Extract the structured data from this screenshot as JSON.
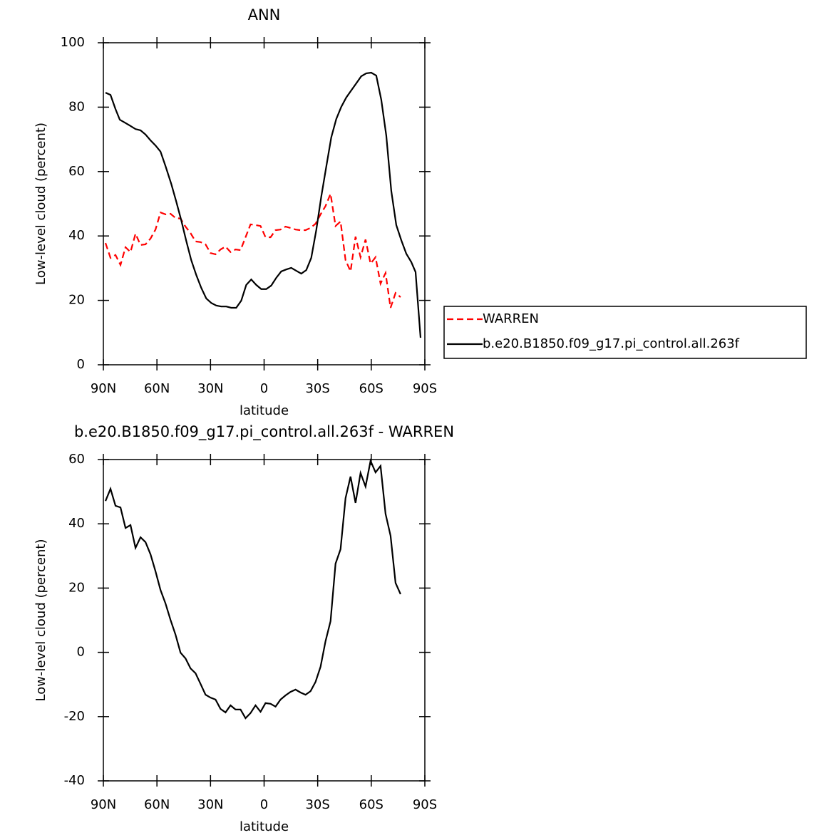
{
  "chart_data": [
    {
      "type": "line",
      "title": "ANN",
      "xlabel": "latitude",
      "ylabel": "Low-level cloud (percent)",
      "xlim": [
        90,
        -90
      ],
      "ylim": [
        0,
        100
      ],
      "xticks": [
        {
          "value": 90,
          "label": "90N"
        },
        {
          "value": 60,
          "label": "60N"
        },
        {
          "value": 30,
          "label": "30N"
        },
        0,
        {
          "value": -30,
          "label": "30S"
        },
        {
          "value": -60,
          "label": "60S"
        },
        {
          "value": -90,
          "label": "90S"
        }
      ],
      "yticks": [
        0,
        20,
        40,
        60,
        80,
        100
      ],
      "legend": "right",
      "series": [
        {
          "name": "WARREN",
          "color": "#ff0000",
          "line_style": "dashed",
          "x": [
            88.8,
            86,
            83.2,
            80.4,
            77.6,
            74.8,
            72,
            69.2,
            66.4,
            63.6,
            60.8,
            58,
            55.2,
            52.4,
            49.6,
            46.8,
            44,
            41.2,
            38.4,
            35.6,
            32.8,
            30,
            27.2,
            24.4,
            21.6,
            18.8,
            16,
            13.2,
            10.4,
            7.6,
            4.8,
            2,
            -0.8,
            -3.6,
            -6.4,
            -9.2,
            -12,
            -14.8,
            -17.6,
            -20.4,
            -23.2,
            -26,
            -28.8,
            -31.6,
            -34.4,
            -37.2,
            -40,
            -42.8,
            -45.6,
            -48.4,
            -51.2,
            -54,
            -56.8,
            -59.6,
            -62.4,
            -65.2,
            -68,
            -70.8,
            -73.6,
            -76.4
          ],
          "values": [
            37.8,
            33.2,
            34.1,
            31.0,
            36.5,
            35.0,
            40.7,
            37.2,
            37.4,
            39.2,
            42.0,
            47.3,
            46.7,
            46.9,
            45.6,
            45.4,
            42.9,
            40.9,
            38.3,
            38.1,
            37.4,
            34.7,
            34.3,
            35.8,
            36.7,
            35.0,
            35.8,
            35.6,
            39.6,
            43.6,
            43.4,
            43.1,
            39.6,
            39.6,
            41.8,
            42.0,
            42.9,
            42.5,
            42.0,
            41.8,
            41.8,
            42.5,
            43.8,
            46.7,
            49.3,
            53.1,
            43.1,
            44.5,
            32.5,
            29.0,
            39.8,
            33.4,
            38.9,
            31.4,
            33.4,
            25.2,
            28.5,
            17.7,
            22.3,
            21.0
          ]
        },
        {
          "name": "b.e20.B1850.f09_g17.pi_control.all.263f",
          "color": "#000000",
          "line_style": "solid",
          "x": [
            88.8,
            86,
            83.2,
            80.8,
            78,
            75.2,
            72,
            69.2,
            66.4,
            63.6,
            60.8,
            58,
            55.2,
            52,
            49.2,
            46.4,
            43.6,
            40.8,
            38,
            35.2,
            32.4,
            29.6,
            26.8,
            24,
            21.2,
            18.4,
            15.6,
            12.8,
            10,
            7.2,
            4.4,
            1.6,
            -1.2,
            -4,
            -6.8,
            -9.6,
            -12.4,
            -15.2,
            -18,
            -20.8,
            -23.6,
            -26.4,
            -29.2,
            -32,
            -34.8,
            -37.6,
            -40.4,
            -43.2,
            -46,
            -48.8,
            -51.6,
            -54.4,
            -57.2,
            -60,
            -62.8,
            -65.6,
            -68.4,
            -71.2,
            -74,
            -76.8,
            -79.6,
            -82.4,
            -84.8,
            -87.6
          ],
          "values": [
            84.5,
            83.8,
            79.4,
            76.1,
            75.2,
            74.3,
            73.2,
            72.8,
            71.5,
            69.7,
            68.1,
            66.2,
            61.7,
            56.2,
            50.7,
            44.9,
            38.5,
            32.5,
            27.9,
            23.9,
            20.6,
            19.2,
            18.4,
            18.1,
            18.1,
            17.7,
            17.7,
            19.9,
            24.8,
            26.5,
            24.8,
            23.5,
            23.5,
            24.6,
            27.0,
            29.0,
            29.6,
            30.1,
            29.2,
            28.3,
            29.4,
            33.2,
            41.8,
            52.2,
            61.5,
            70.6,
            76.3,
            80.1,
            83.0,
            85.2,
            87.4,
            89.6,
            90.5,
            90.7,
            89.8,
            82.3,
            71.2,
            54.0,
            43.4,
            38.7,
            34.5,
            31.9,
            28.8,
            8.4
          ]
        }
      ]
    },
    {
      "type": "line",
      "title": "b.e20.B1850.f09_g17.pi_control.all.263f - WARREN",
      "xlabel": "latitude",
      "ylabel": "Low-level cloud (percent)",
      "xlim": [
        90,
        -90
      ],
      "ylim": [
        -40,
        60
      ],
      "xticks": [
        {
          "value": 90,
          "label": "90N"
        },
        {
          "value": 60,
          "label": "60N"
        },
        {
          "value": 30,
          "label": "30N"
        },
        0,
        {
          "value": -30,
          "label": "30S"
        },
        {
          "value": -60,
          "label": "60S"
        },
        {
          "value": -90,
          "label": "90S"
        }
      ],
      "yticks": [
        -40,
        -20,
        0,
        20,
        40,
        60
      ],
      "series": [
        {
          "color": "#000000",
          "line_style": "solid",
          "x": [
            88.8,
            86,
            83.2,
            80.4,
            77.6,
            74.8,
            72,
            69.2,
            66.4,
            63.6,
            60.8,
            58,
            55.2,
            52.4,
            49.6,
            46.8,
            44,
            41.2,
            38.4,
            35.6,
            32.8,
            30,
            27.2,
            24.4,
            21.6,
            18.8,
            16,
            13.2,
            10.4,
            7.6,
            4.8,
            2,
            -0.8,
            -3.6,
            -6.4,
            -9.2,
            -12,
            -14.8,
            -17.6,
            -20.4,
            -23.2,
            -26,
            -28.8,
            -31.6,
            -34.4,
            -37.2,
            -40,
            -42.8,
            -45.6,
            -48.4,
            -51.2,
            -54,
            -56.8,
            -59.6,
            -62.4,
            -65.2,
            -68,
            -70.8,
            -73.6,
            -76.4
          ],
          "values": [
            47.1,
            50.9,
            45.6,
            45.1,
            38.7,
            39.6,
            32.5,
            35.8,
            34.3,
            30.5,
            25.2,
            19.4,
            15.2,
            10.1,
            5.5,
            -0.1,
            -1.9,
            -5.0,
            -6.5,
            -9.8,
            -13.2,
            -14.1,
            -14.7,
            -17.6,
            -18.7,
            -16.5,
            -17.8,
            -17.8,
            -20.5,
            -18.9,
            -16.5,
            -18.5,
            -15.8,
            -16.0,
            -16.9,
            -14.7,
            -13.4,
            -12.3,
            -11.6,
            -12.5,
            -13.2,
            -12.1,
            -9.2,
            -4.5,
            3.5,
            9.7,
            27.6,
            32.1,
            48.0,
            54.7,
            46.5,
            55.8,
            51.6,
            59.6,
            56.0,
            58.0,
            43.1,
            36.3,
            21.6,
            18.1
          ]
        }
      ]
    }
  ]
}
